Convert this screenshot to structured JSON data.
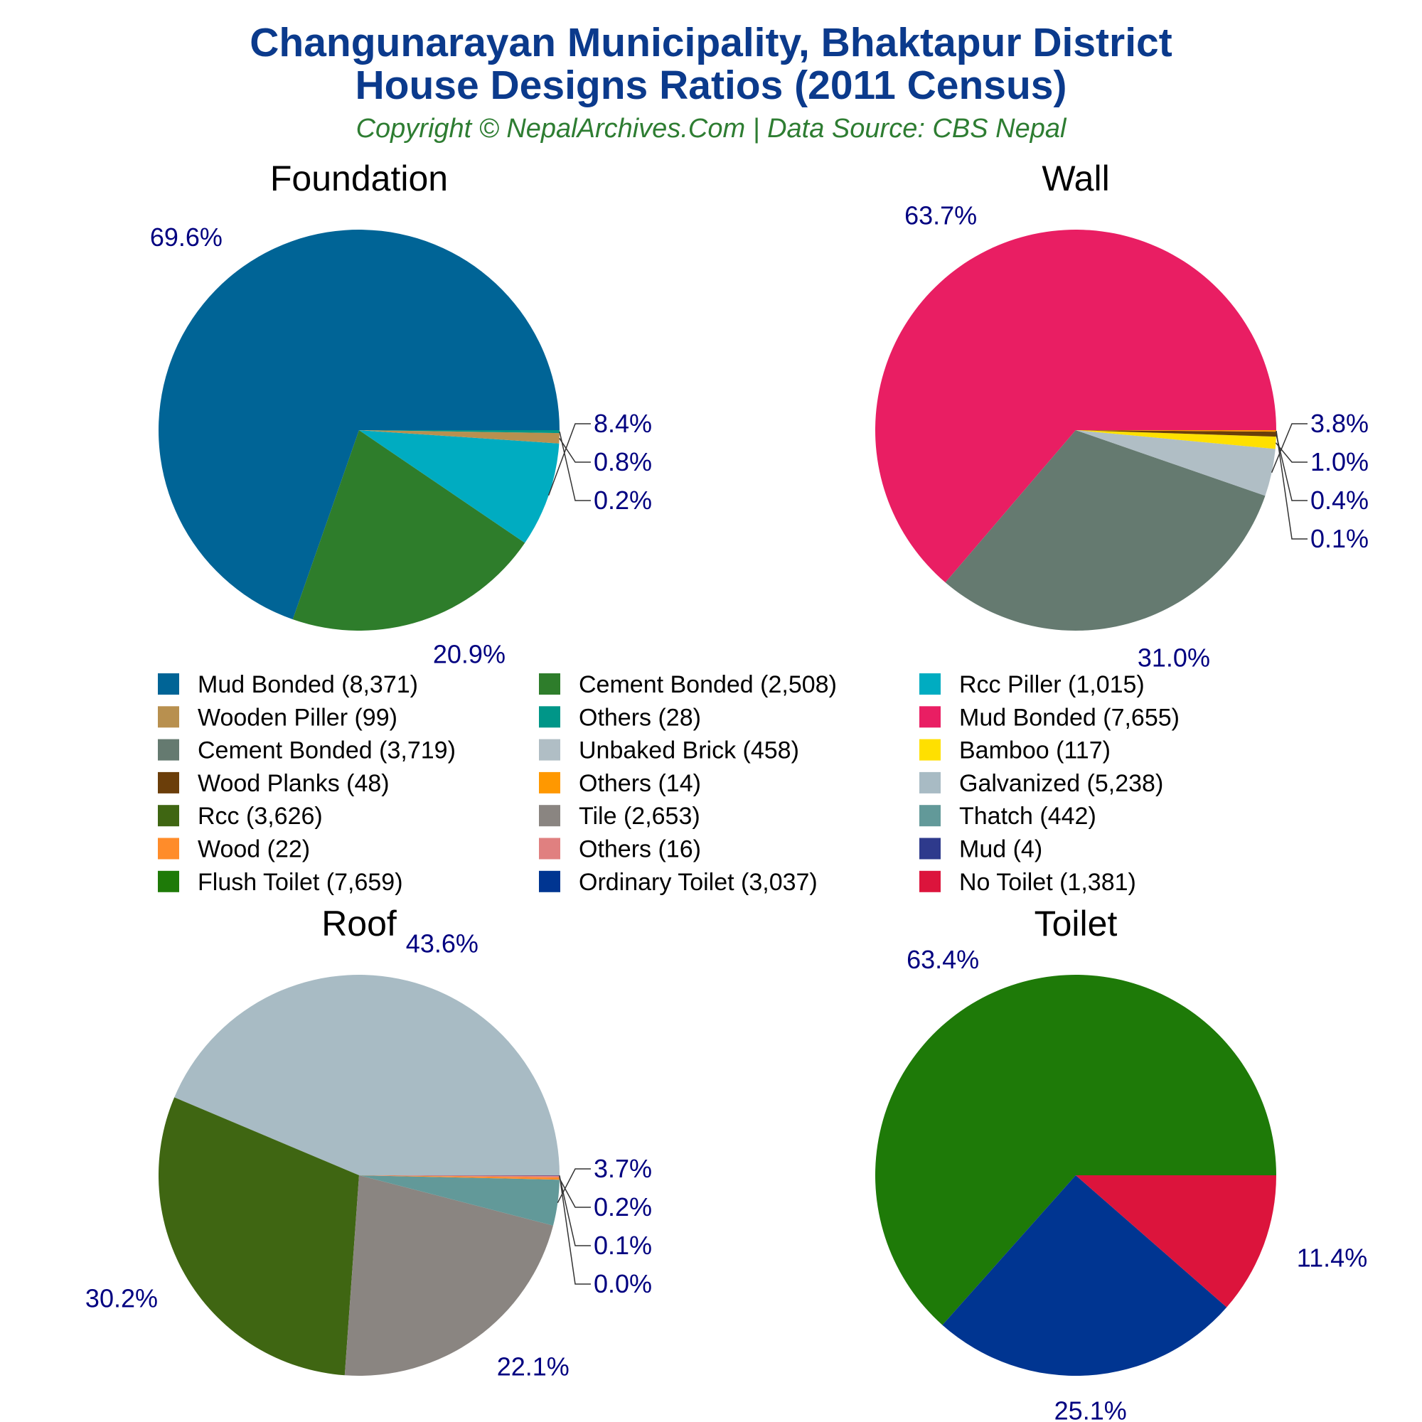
{
  "header": {
    "title_line1": "Changunarayan Municipality, Bhaktapur District",
    "title_line2": "House Designs Ratios (2011 Census)",
    "subtitle": "Copyright © NepalArchives.Com | Data Source: CBS Nepal"
  },
  "chart_data": [
    {
      "type": "pie",
      "title": "Foundation",
      "slices": [
        {
          "label": "Mud Bonded",
          "value": 8371,
          "pct_label": "69.6%",
          "color": "#006496"
        },
        {
          "label": "Cement Bonded",
          "value": 2508,
          "pct_label": "20.9%",
          "color": "#2e7d2b"
        },
        {
          "label": "Rcc Piller",
          "value": 1015,
          "pct_label": "8.4%",
          "color": "#00acc1"
        },
        {
          "label": "Wooden Piller",
          "value": 99,
          "pct_label": "0.8%",
          "color": "#b8904f"
        },
        {
          "label": "Others",
          "value": 28,
          "pct_label": "0.2%",
          "color": "#009688"
        }
      ]
    },
    {
      "type": "pie",
      "title": "Wall",
      "slices": [
        {
          "label": "Mud Bonded",
          "value": 7655,
          "pct_label": "63.7%",
          "color": "#e91e63"
        },
        {
          "label": "Cement Bonded",
          "value": 3719,
          "pct_label": "31.0%",
          "color": "#657a70"
        },
        {
          "label": "Unbaked Brick",
          "value": 458,
          "pct_label": "3.8%",
          "color": "#b0bec5"
        },
        {
          "label": "Bamboo",
          "value": 117,
          "pct_label": "1.0%",
          "color": "#ffe000"
        },
        {
          "label": "Wood Planks",
          "value": 48,
          "pct_label": "0.4%",
          "color": "#6b3e0a"
        },
        {
          "label": "Others",
          "value": 14,
          "pct_label": "0.1%",
          "color": "#ff9800"
        }
      ]
    },
    {
      "type": "pie",
      "title": "Roof",
      "slices": [
        {
          "label": "Galvanized",
          "value": 5238,
          "pct_label": "43.6%",
          "color": "#a8bbc4"
        },
        {
          "label": "Rcc",
          "value": 3626,
          "pct_label": "30.2%",
          "color": "#3f6612"
        },
        {
          "label": "Tile",
          "value": 2653,
          "pct_label": "22.1%",
          "color": "#8a8581"
        },
        {
          "label": "Thatch",
          "value": 442,
          "pct_label": "3.7%",
          "color": "#629999"
        },
        {
          "label": "Wood",
          "value": 22,
          "pct_label": "0.2%",
          "color": "#ff8c2a"
        },
        {
          "label": "Others",
          "value": 16,
          "pct_label": "0.1%",
          "color": "#e08080"
        },
        {
          "label": "Mud",
          "value": 4,
          "pct_label": "0.0%",
          "color": "#2e3a8c"
        }
      ]
    },
    {
      "type": "pie",
      "title": "Toilet",
      "slices": [
        {
          "label": "Flush Toilet",
          "value": 7659,
          "pct_label": "63.4%",
          "color": "#1e7a08"
        },
        {
          "label": "Ordinary Toilet",
          "value": 3037,
          "pct_label": "25.1%",
          "color": "#003591"
        },
        {
          "label": "No Toilet",
          "value": 1381,
          "pct_label": "11.4%",
          "color": "#dc143c"
        }
      ]
    }
  ],
  "legend": [
    {
      "label": "Mud Bonded (8,371)",
      "color": "#006496"
    },
    {
      "label": "Cement Bonded (2,508)",
      "color": "#2e7d2b"
    },
    {
      "label": "Rcc Piller (1,015)",
      "color": "#00acc1"
    },
    {
      "label": "Wooden Piller (99)",
      "color": "#b8904f"
    },
    {
      "label": "Others (28)",
      "color": "#009688"
    },
    {
      "label": "Mud Bonded (7,655)",
      "color": "#e91e63"
    },
    {
      "label": "Cement Bonded (3,719)",
      "color": "#657a70"
    },
    {
      "label": "Unbaked Brick (458)",
      "color": "#b0bec5"
    },
    {
      "label": "Bamboo (117)",
      "color": "#ffe000"
    },
    {
      "label": "Wood Planks (48)",
      "color": "#6b3e0a"
    },
    {
      "label": "Others (14)",
      "color": "#ff9800"
    },
    {
      "label": "Galvanized (5,238)",
      "color": "#a8bbc4"
    },
    {
      "label": "Rcc (3,626)",
      "color": "#3f6612"
    },
    {
      "label": "Tile (2,653)",
      "color": "#8a8581"
    },
    {
      "label": "Thatch (442)",
      "color": "#629999"
    },
    {
      "label": "Wood (22)",
      "color": "#ff8c2a"
    },
    {
      "label": "Others (16)",
      "color": "#e08080"
    },
    {
      "label": "Mud (4)",
      "color": "#2e3a8c"
    },
    {
      "label": "Flush Toilet (7,659)",
      "color": "#1e7a08"
    },
    {
      "label": "Ordinary Toilet (3,037)",
      "color": "#003591"
    },
    {
      "label": "No Toilet (1,381)",
      "color": "#dc143c"
    }
  ]
}
